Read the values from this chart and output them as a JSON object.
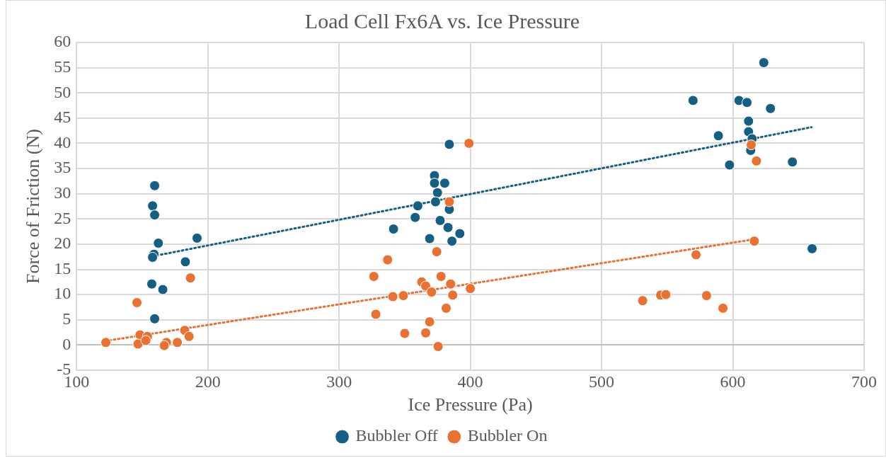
{
  "chart_data": {
    "type": "scatter",
    "title": "Load Cell Fx6A vs. Ice Pressure",
    "xlabel": "Ice Pressure (Pa)",
    "ylabel": "Force of Friction (N)",
    "xlim": [
      100,
      700
    ],
    "xticks": [
      100,
      200,
      300,
      400,
      500,
      600,
      700
    ],
    "ylim": [
      -5,
      60
    ],
    "yticks": [
      -5,
      0,
      5,
      10,
      15,
      20,
      25,
      30,
      35,
      40,
      45,
      50,
      55,
      60
    ],
    "grid": true,
    "legend": "bottom",
    "marker": "circle",
    "series": [
      {
        "name": "Bubbler Off",
        "color": "#156082",
        "x": [
          159.5,
          157.9,
          159.5,
          191.8,
          162.3,
          159,
          157.9,
          182.9,
          157.3,
          165.7,
          159.5,
          384,
          372.7,
          372.7,
          380.5,
          375,
          373.5,
          384,
          360,
          358,
          341.5,
          377,
          383,
          392,
          369,
          386,
          623.6,
          569.7,
          604.7,
          610.8,
          628.7,
          612,
          612,
          589,
          614.7,
          613.6,
          597.5,
          645.4,
          660.4
        ],
        "values": [
          31.6,
          27.6,
          25.8,
          21.2,
          20.2,
          18,
          17.4,
          16.5,
          12.1,
          11,
          5.2,
          39.8,
          33.6,
          32.1,
          32.1,
          30.2,
          28.4,
          26.9,
          27.6,
          25.3,
          23,
          24.7,
          23.3,
          22.1,
          21.1,
          20.6,
          56,
          48.5,
          48.5,
          48.1,
          46.9,
          44.4,
          42.3,
          41.5,
          40.9,
          38.6,
          35.7,
          36.3,
          19.1
        ]
      },
      {
        "name": "Bubbler On",
        "color": "#e97132",
        "x": [
          186.8,
          146,
          182.4,
          185.7,
          148.3,
          154,
          122.3,
          146.8,
          152.8,
          168.5,
          166.8,
          176.8,
          399,
          384,
          374.4,
          337,
          326.5,
          377.7,
          363,
          366,
          385,
          370.5,
          400,
          386.6,
          341,
          349,
          381.6,
          328,
          369,
          350,
          366,
          375.5,
          614,
          618,
          616.4,
          572,
          545,
          549,
          580,
          592.5,
          531.3
        ],
        "values": [
          13.3,
          8.4,
          2.9,
          1.7,
          2,
          1.7,
          0.5,
          0.2,
          0.9,
          0.5,
          -0.1,
          0.5,
          40,
          28.4,
          18.5,
          16.9,
          13.6,
          13.6,
          12.5,
          11.7,
          12.1,
          10.5,
          11.2,
          9.9,
          9.6,
          9.8,
          7.3,
          6.1,
          4.6,
          2.3,
          2.4,
          -0.3,
          39.7,
          36.5,
          20.6,
          17.9,
          9.9,
          10,
          9.8,
          7.3,
          8.8
        ]
      },
      {
        "type": "line",
        "line_style": "dotted",
        "marker": "none",
        "color": "#156082",
        "x": [
          158,
          660
        ],
        "values": [
          17.6,
          43.2
        ]
      },
      {
        "type": "line",
        "line_style": "dotted",
        "marker": "none",
        "color": "#e97132",
        "x": [
          122,
          617
        ],
        "values": [
          0.8,
          21
        ]
      }
    ]
  }
}
